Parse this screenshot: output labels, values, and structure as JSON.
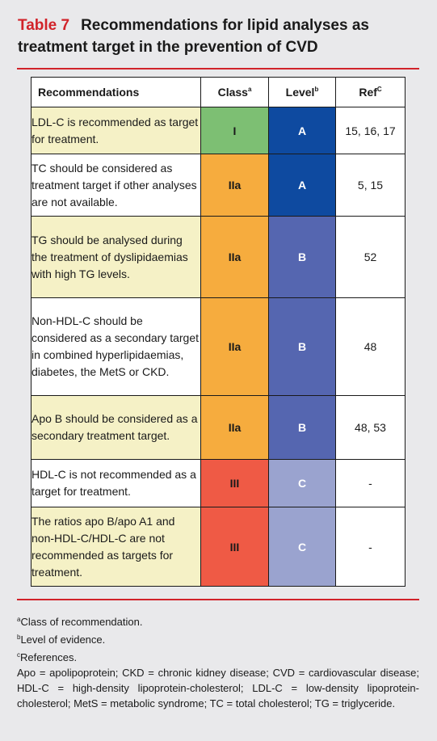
{
  "title": {
    "number": "Table 7",
    "text": "Recommendations for lipid analyses as treatment target in the prevention of CVD"
  },
  "colors": {
    "title_red": "#d1232a",
    "rec_bg_shaded": "#f5f1c6",
    "rec_bg_plain": "#ffffff",
    "class_I": "#7dbf73",
    "class_IIa": "#f6ac3e",
    "class_III": "#ef5a45",
    "level_A": "#0e4aa0",
    "level_B": "#5566b0",
    "level_C": "#9aa3cf"
  },
  "table": {
    "headers": {
      "recommendations": "Recommendations",
      "class": "Class",
      "class_sup": "a",
      "level": "Level",
      "level_sup": "b",
      "ref": "Ref",
      "ref_sup": "C"
    },
    "rows": [
      {
        "text": "LDL-C is recommended as target for treatment.",
        "class": "I",
        "level": "A",
        "ref": "15, 16, 17",
        "shaded": true
      },
      {
        "text": "TC should be considered as treatment target if other analyses are not available.",
        "class": "IIa",
        "level": "A",
        "ref": "5, 15",
        "shaded": false
      },
      {
        "text": "TG should be analysed during the treatment of dyslipidaemias with high TG levels.",
        "class": "IIa",
        "level": "B",
        "ref": "52",
        "shaded": true
      },
      {
        "text": "Non-HDL-C should be considered as a secondary target in combined hyperlipidaemias, diabetes, the MetS or CKD.",
        "class": "IIa",
        "level": "B",
        "ref": "48",
        "shaded": false
      },
      {
        "text": "Apo B should be considered as a secondary treatment target.",
        "class": "IIa",
        "level": "B",
        "ref": "48, 53",
        "shaded": true
      },
      {
        "text": "HDL-C is not recommended as a target for treatment.",
        "class": "III",
        "level": "C",
        "ref": "-",
        "shaded": false
      },
      {
        "text": "The ratios apo B/apo A1 and non-HDL-C/HDL-C are not recommended as targets for treatment.",
        "class": "III",
        "level": "C",
        "ref": "-",
        "shaded": true
      }
    ]
  },
  "footnotes": {
    "a_mark": "a",
    "a_text": "Class of recommendation.",
    "b_mark": "b",
    "b_text": "Level of evidence.",
    "c_mark": "c",
    "c_text": "References.",
    "abbreviations": "Apo = apolipoprotein; CKD = chronic kidney disease; CVD = cardiovascular disease; HDL-C = high-density lipoprotein-cholesterol; LDL-C = low-density lipoprotein-cholesterol; MetS = metabolic syndrome; TC = total cholesterol; TG = triglyceride."
  }
}
